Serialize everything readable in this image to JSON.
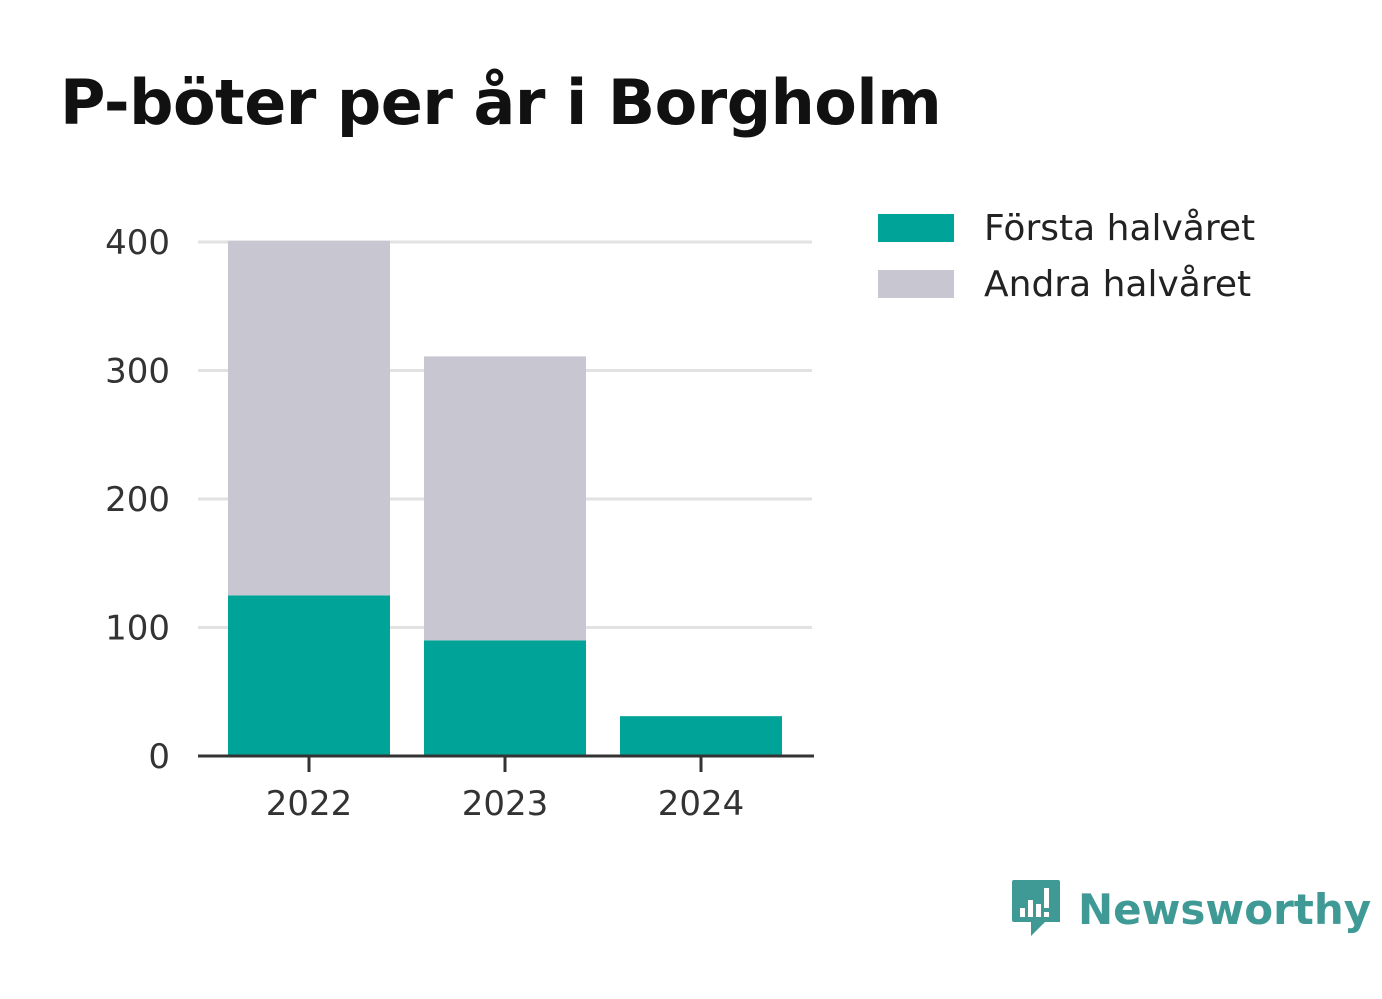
{
  "colors": {
    "first_half": "#00a398",
    "second_half": "#c8c7d1",
    "grid": "#e2e2e2",
    "axis": "#333333",
    "brand": "#3f9a95"
  },
  "chart_data": {
    "type": "bar",
    "stacked": true,
    "title": "P-böter per år i Borgholm",
    "categories": [
      "2022",
      "2023",
      "2024"
    ],
    "series": [
      {
        "name": "Första halvåret",
        "values": [
          125,
          90,
          31
        ]
      },
      {
        "name": "Andra halvåret",
        "values": [
          276,
          221,
          0
        ]
      }
    ],
    "ylim": [
      0,
      400
    ],
    "yticks": [
      0,
      100,
      200,
      300,
      400
    ],
    "grid": true,
    "legend": "right"
  },
  "branding": {
    "label": "Newsworthy",
    "icon": "newsworthy-logo-icon"
  }
}
